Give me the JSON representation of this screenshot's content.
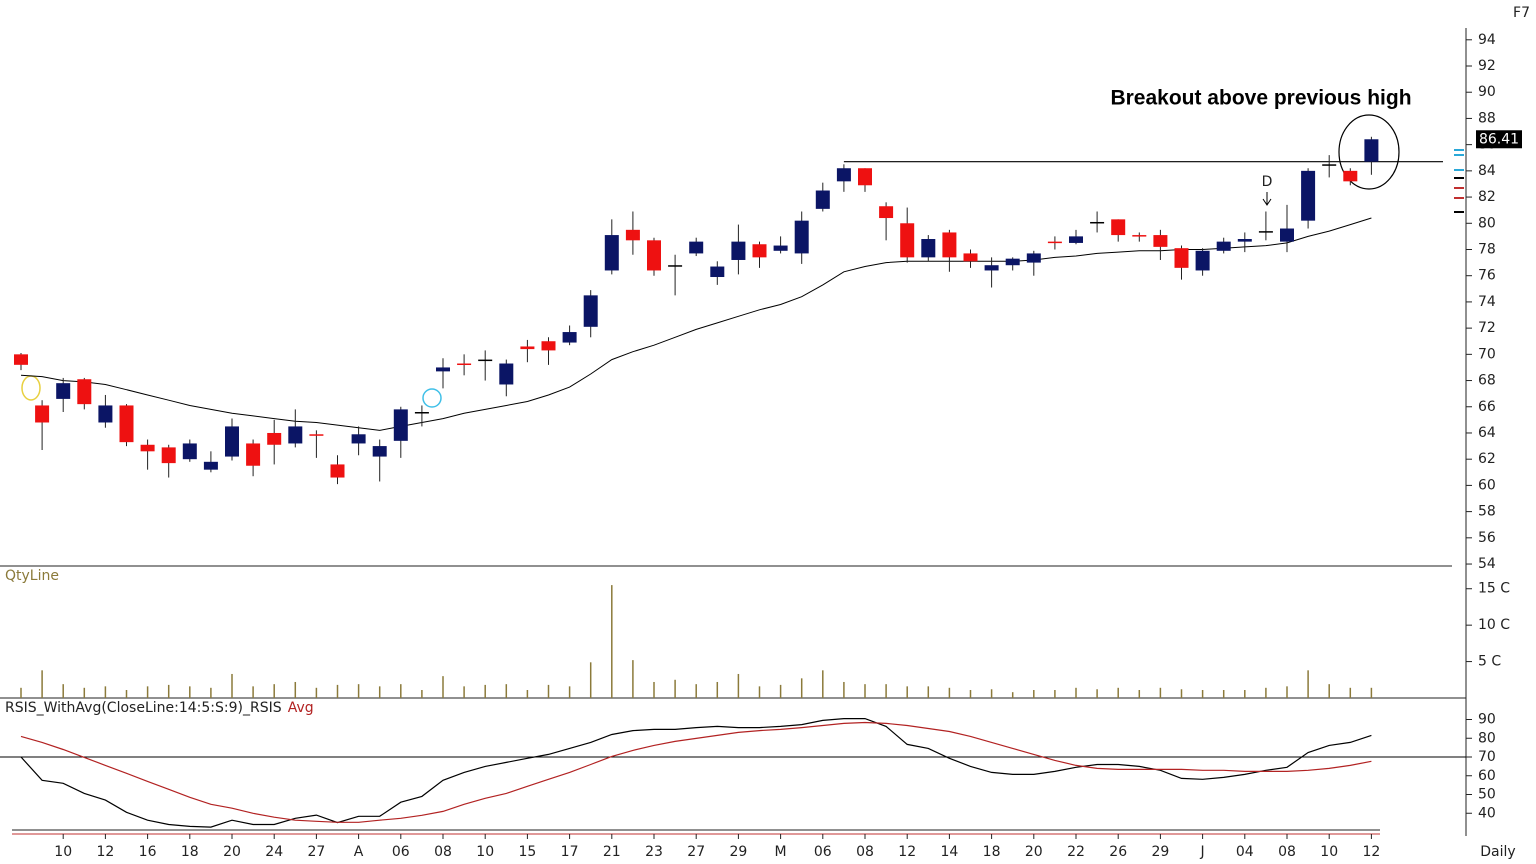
{
  "chart_data": [
    {
      "type": "candlestick",
      "corner_label": "F7",
      "annotations": [
        "Breakout above previous high",
        "D"
      ],
      "up_color": "#0b1565",
      "down_color": "#ee1111",
      "doji_color": "#000000",
      "ma_color": "#000000",
      "ylim": [
        53.85,
        94.9
      ],
      "yticks": [
        54,
        56,
        58,
        60,
        62,
        64,
        66,
        68,
        70,
        72,
        74,
        76,
        78,
        80,
        82,
        84,
        86,
        88,
        90,
        92,
        94
      ],
      "grid": false,
      "resistance": 84.7,
      "open": [
        70.0,
        66.1,
        66.6,
        68.1,
        64.8,
        66.1,
        63.1,
        62.9,
        62.0,
        61.2,
        62.2,
        63.2,
        64.0,
        63.2,
        63.9,
        61.6,
        63.2,
        62.2,
        63.4,
        65.6,
        68.7,
        69.3,
        69.6,
        67.7,
        70.6,
        71.0,
        70.9,
        72.1,
        76.4,
        79.5,
        78.7,
        76.8,
        77.7,
        75.9,
        77.2,
        78.4,
        77.9,
        77.7,
        81.1,
        83.2,
        84.2,
        81.3,
        80.0,
        77.4,
        79.3,
        77.7,
        76.4,
        76.8,
        77.0,
        78.6,
        78.5,
        80.1,
        80.3,
        79.1,
        79.1,
        78.1,
        76.4,
        77.9,
        78.6,
        79.4,
        78.6,
        80.2,
        84.5,
        84.0,
        84.7
      ],
      "high": [
        70.1,
        66.5,
        68.2,
        68.2,
        66.9,
        66.2,
        63.5,
        63.1,
        63.5,
        62.6,
        65.1,
        63.5,
        65.0,
        65.8,
        64.2,
        62.3,
        64.5,
        63.5,
        66.0,
        66.1,
        69.7,
        70.0,
        70.3,
        69.6,
        71.1,
        71.3,
        72.2,
        74.9,
        80.3,
        80.9,
        78.9,
        77.6,
        78.9,
        77.1,
        79.9,
        78.6,
        79.0,
        80.9,
        83.1,
        84.5,
        84.2,
        81.6,
        81.2,
        79.1,
        79.5,
        78.0,
        77.4,
        77.4,
        77.9,
        79.0,
        79.5,
        80.9,
        80.3,
        79.3,
        79.5,
        78.3,
        78.1,
        78.9,
        79.3,
        80.9,
        81.4,
        84.2,
        85.2,
        84.2,
        86.6
      ],
      "low": [
        68.8,
        62.7,
        65.6,
        65.8,
        64.4,
        63.0,
        61.2,
        60.6,
        61.8,
        61.0,
        61.9,
        60.7,
        61.6,
        62.9,
        62.1,
        60.1,
        62.3,
        60.3,
        62.1,
        64.5,
        67.4,
        68.4,
        68.0,
        66.8,
        69.4,
        69.2,
        70.7,
        71.3,
        76.1,
        77.6,
        76.0,
        74.5,
        77.5,
        75.3,
        76.1,
        76.6,
        77.7,
        76.9,
        80.9,
        82.4,
        82.4,
        78.7,
        77.0,
        77.1,
        76.3,
        76.6,
        75.1,
        76.4,
        76.0,
        78.0,
        78.4,
        79.3,
        78.6,
        78.6,
        77.2,
        75.7,
        76.0,
        77.7,
        77.8,
        78.7,
        77.8,
        79.6,
        83.5,
        82.9,
        83.7
      ],
      "close": [
        69.2,
        64.8,
        67.8,
        66.2,
        66.1,
        63.3,
        62.6,
        61.7,
        63.2,
        61.8,
        64.5,
        61.5,
        63.1,
        64.5,
        63.8,
        60.6,
        63.9,
        63.0,
        65.8,
        65.6,
        69.0,
        69.2,
        69.6,
        69.3,
        70.4,
        70.3,
        71.7,
        74.5,
        79.1,
        78.7,
        76.4,
        76.8,
        78.6,
        76.7,
        78.6,
        77.4,
        78.3,
        80.2,
        82.5,
        84.2,
        82.9,
        80.4,
        77.4,
        78.8,
        77.4,
        77.1,
        76.8,
        77.3,
        77.7,
        78.5,
        79.0,
        80.1,
        79.1,
        79.0,
        78.2,
        76.6,
        77.9,
        78.6,
        78.8,
        79.4,
        79.6,
        84.0,
        84.5,
        83.2,
        86.41
      ],
      "ma": [
        68.4,
        68.3,
        68.0,
        67.9,
        67.7,
        67.3,
        66.9,
        66.5,
        66.1,
        65.8,
        65.5,
        65.3,
        65.1,
        64.9,
        64.8,
        64.6,
        64.4,
        64.2,
        64.5,
        64.8,
        65.1,
        65.5,
        65.8,
        66.1,
        66.4,
        66.9,
        67.5,
        68.5,
        69.6,
        70.2,
        70.7,
        71.3,
        71.9,
        72.4,
        72.9,
        73.4,
        73.8,
        74.4,
        75.3,
        76.3,
        76.7,
        77.0,
        77.1,
        77.1,
        77.1,
        77.1,
        77.1,
        77.1,
        77.2,
        77.4,
        77.5,
        77.7,
        77.8,
        77.9,
        77.9,
        78.0,
        78.0,
        78.1,
        78.2,
        78.3,
        78.5,
        79.0,
        79.4,
        79.9,
        80.4
      ]
    },
    {
      "type": "bar",
      "title": "QtyLine",
      "color": "#8b7a3a",
      "ylim": [
        0,
        16.2
      ],
      "yticks": [
        {
          "value": 5,
          "label": "5 C"
        },
        {
          "value": 10,
          "label": "10 C"
        },
        {
          "value": 15,
          "label": "15 C"
        }
      ],
      "values": [
        1.4,
        3.8,
        1.9,
        1.4,
        1.6,
        1.1,
        1.6,
        1.8,
        1.6,
        1.4,
        3.3,
        1.6,
        1.9,
        2.2,
        1.4,
        1.8,
        1.9,
        1.6,
        1.9,
        1.1,
        3.0,
        1.6,
        1.8,
        1.9,
        1.1,
        1.8,
        1.6,
        4.9,
        15.5,
        5.2,
        2.2,
        2.5,
        1.9,
        2.2,
        3.3,
        1.6,
        1.8,
        2.7,
        3.8,
        2.2,
        1.9,
        1.9,
        1.6,
        1.6,
        1.4,
        1.1,
        1.2,
        0.8,
        1.1,
        1.1,
        1.4,
        1.2,
        1.4,
        1.1,
        1.4,
        1.2,
        1.1,
        1.1,
        1.1,
        1.4,
        1.6,
        3.8,
        1.9,
        1.4,
        1.4
      ]
    },
    {
      "type": "line",
      "period": "Daily",
      "ylim": [
        30,
        94
      ],
      "yticks": [
        40,
        50,
        60,
        70,
        80,
        90
      ],
      "reference": 70,
      "categories": [
        null,
        null,
        "10",
        null,
        "12",
        null,
        "16",
        null,
        "18",
        null,
        "20",
        null,
        "24",
        null,
        "27",
        null,
        "A",
        null,
        "06",
        null,
        "08",
        null,
        "10",
        null,
        "15",
        null,
        "17",
        null,
        "21",
        null,
        "23",
        null,
        "27",
        null,
        "29",
        null,
        "M",
        null,
        "06",
        null,
        "08",
        null,
        "12",
        null,
        "14",
        null,
        "18",
        null,
        "20",
        null,
        "22",
        null,
        "26",
        null,
        "29",
        null,
        "J",
        null,
        "04",
        null,
        "08",
        null,
        "10",
        null,
        "12"
      ],
      "series": [
        {
          "name": "RSIS_WithAvg(CloseLine:14:5:S:9)_RSIS",
          "color": "#000000",
          "values": [
            70,
            57.6,
            56,
            50.6,
            47,
            40.5,
            36.3,
            34,
            33,
            32.6,
            36.3,
            34,
            34,
            37.3,
            39,
            35,
            38.4,
            38.4,
            45.9,
            49,
            57.6,
            61.8,
            65,
            67.1,
            69.3,
            71.4,
            74.6,
            77.8,
            82,
            84.1,
            84.7,
            84.7,
            85.7,
            86.3,
            85.7,
            85.7,
            86.3,
            87.3,
            89.5,
            90.5,
            90.5,
            86.3,
            76.7,
            74.6,
            69.3,
            65,
            61.8,
            60.7,
            60.7,
            62.3,
            64.5,
            66,
            66,
            65,
            62.9,
            58.6,
            58.1,
            59.1,
            60.7,
            62.9,
            64.5,
            72.4,
            76.2,
            77.8,
            81.5
          ]
        },
        {
          "name": "Avg",
          "color": "#b22222",
          "values": [
            81,
            77.8,
            74,
            69.8,
            65.5,
            61.3,
            57,
            52.8,
            48.5,
            44.8,
            42.7,
            40,
            37.9,
            36.3,
            35.7,
            35.2,
            35.2,
            36.3,
            37.3,
            38.9,
            41,
            44.8,
            48,
            50.6,
            54.4,
            58.1,
            61.8,
            66,
            70.3,
            73.5,
            76.2,
            78.3,
            79.9,
            81.5,
            83.1,
            84.1,
            84.7,
            85.7,
            86.8,
            87.9,
            88.4,
            87.9,
            86.8,
            85.2,
            83.6,
            81,
            77.8,
            74.6,
            71.4,
            68.2,
            65.5,
            63.9,
            63.4,
            63.4,
            63.4,
            63.4,
            62.9,
            62.9,
            62.3,
            62.3,
            62.3,
            62.9,
            63.9,
            65.5,
            67.7
          ]
        }
      ]
    }
  ]
}
